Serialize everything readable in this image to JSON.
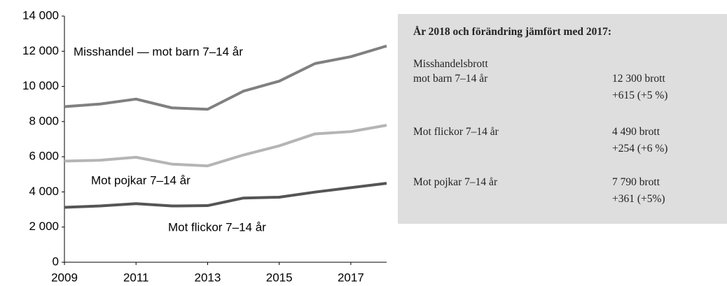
{
  "chart_data": {
    "type": "line",
    "x": [
      2009,
      2010,
      2011,
      2012,
      2013,
      2014,
      2015,
      2016,
      2017,
      2018
    ],
    "xlim": [
      2009,
      2018
    ],
    "xticks": [
      2009,
      2011,
      2013,
      2015,
      2017
    ],
    "ylim": [
      0,
      14000
    ],
    "yticks": [
      {
        "value": 0,
        "label": "0"
      },
      {
        "value": 2000,
        "label": "2 000"
      },
      {
        "value": 4000,
        "label": "4 000"
      },
      {
        "value": 6000,
        "label": "6 000"
      },
      {
        "value": 8000,
        "label": "8 000"
      },
      {
        "value": 10000,
        "label": "10 000"
      },
      {
        "value": 12000,
        "label": "12 000"
      },
      {
        "value": 14000,
        "label": "14 000"
      }
    ],
    "grid": false,
    "series": [
      {
        "name": "Misshandel — mot barn 7–14 år",
        "color": "#808080",
        "values": [
          8850,
          9000,
          9280,
          8780,
          8700,
          9730,
          10300,
          11300,
          11690,
          12300
        ]
      },
      {
        "name": "Mot pojkar 7–14 år",
        "color": "#b5b5b5",
        "values": [
          5750,
          5800,
          5970,
          5580,
          5480,
          6100,
          6620,
          7300,
          7430,
          7790
        ]
      },
      {
        "name": "Mot flickor  7–14 år",
        "color": "#555555",
        "values": [
          3120,
          3200,
          3330,
          3200,
          3220,
          3650,
          3700,
          3990,
          4240,
          4490
        ]
      }
    ]
  },
  "info_box": {
    "title": "År 2018 och förändring jämfört med 2017:",
    "rows": [
      {
        "label": [
          "Misshandelsbrott",
          "mot barn 7–14 år"
        ],
        "value": [
          "12 300 brott",
          "+615 (+5 %)"
        ]
      },
      {
        "label": [
          "Mot flickor 7–14 år"
        ],
        "value": [
          "4 490 brott",
          "+254 (+6 %)"
        ]
      },
      {
        "label": [
          "Mot pojkar 7–14 år"
        ],
        "value": [
          "7 790 brott",
          "+361 (+5%)"
        ]
      }
    ]
  }
}
